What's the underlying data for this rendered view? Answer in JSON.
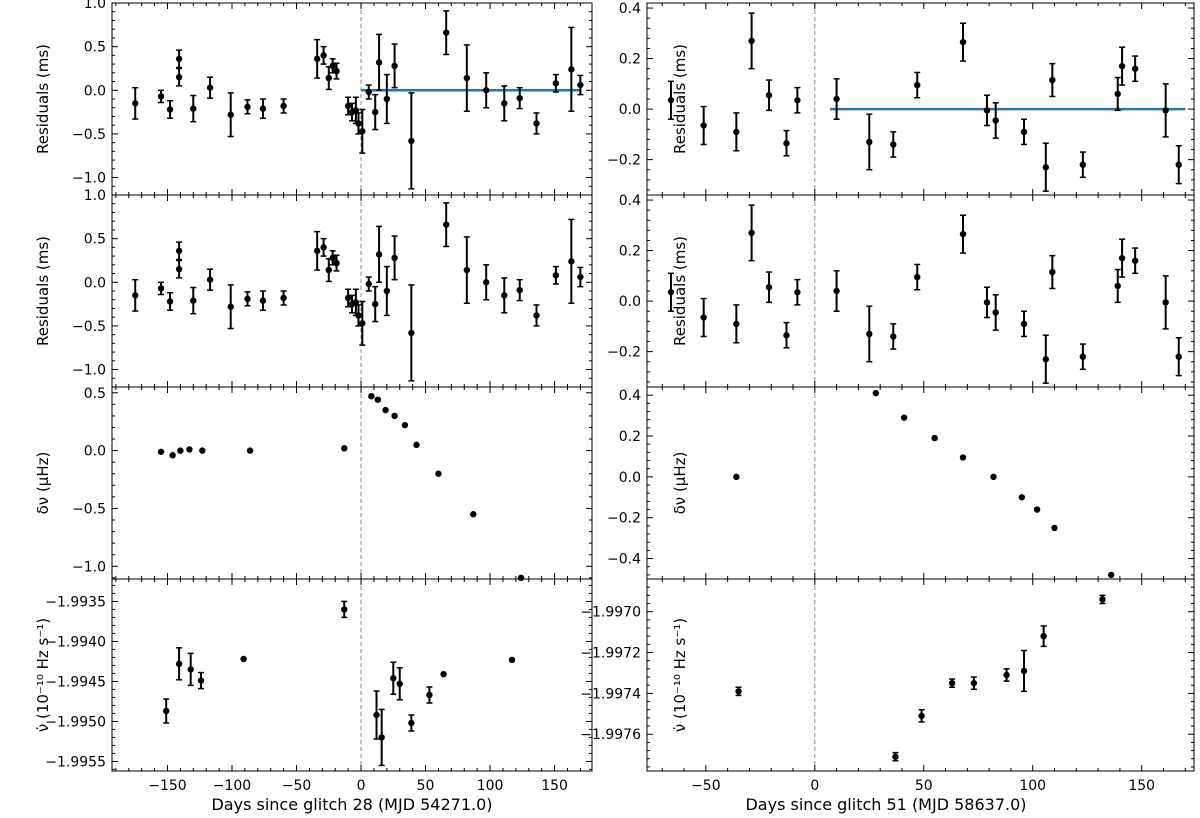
{
  "chart_data": [
    {
      "id": "left",
      "title": "",
      "xlabel": "Days since glitch 28 (MJD 54271.0)",
      "xlim": [
        -193,
        179
      ],
      "xticks": [
        -150,
        -100,
        -50,
        0,
        50,
        100,
        150
      ],
      "xtick_labels": [
        "−150",
        "−100",
        "−50",
        "0",
        "50",
        "100",
        "150"
      ],
      "glitch_epoch": 0,
      "panels": [
        {
          "type": "scatter",
          "name": "residuals-pre-fit",
          "ylabel": "Residuals (ms)",
          "ylim": [
            -1.2,
            1.0
          ],
          "yticks": [
            -1.0,
            -0.5,
            0.0,
            0.5,
            1.0
          ],
          "ytick_labels": [
            "−1.0",
            "−0.5",
            "0.0",
            "0.5",
            "1.0"
          ],
          "fit_line": {
            "x": [
              0,
              170
            ],
            "y": 0.0
          },
          "points": [
            {
              "x": -175,
              "y": -0.15,
              "err": 0.18
            },
            {
              "x": -155,
              "y": -0.07,
              "err": 0.07
            },
            {
              "x": -148,
              "y": -0.22,
              "err": 0.1
            },
            {
              "x": -141,
              "y": 0.36,
              "err": 0.1
            },
            {
              "x": -141,
              "y": 0.15,
              "err": 0.1
            },
            {
              "x": -130,
              "y": -0.21,
              "err": 0.15
            },
            {
              "x": -117,
              "y": 0.03,
              "err": 0.12
            },
            {
              "x": -101,
              "y": -0.28,
              "err": 0.25
            },
            {
              "x": -88,
              "y": -0.19,
              "err": 0.08
            },
            {
              "x": -76,
              "y": -0.21,
              "err": 0.11
            },
            {
              "x": -60,
              "y": -0.18,
              "err": 0.08
            },
            {
              "x": -34,
              "y": 0.36,
              "err": 0.22
            },
            {
              "x": -29,
              "y": 0.4,
              "err": 0.1
            },
            {
              "x": -25,
              "y": 0.14,
              "err": 0.13
            },
            {
              "x": -22,
              "y": 0.28,
              "err": 0.08
            },
            {
              "x": -19,
              "y": 0.22,
              "err": 0.09
            },
            {
              "x": -10,
              "y": -0.18,
              "err": 0.1
            },
            {
              "x": -7,
              "y": -0.25,
              "err": 0.1
            },
            {
              "x": -4,
              "y": -0.23,
              "err": 0.15
            },
            {
              "x": -2,
              "y": -0.38,
              "err": 0.12
            },
            {
              "x": 1,
              "y": -0.47,
              "err": 0.25
            },
            {
              "x": 6,
              "y": -0.02,
              "err": 0.08
            },
            {
              "x": 11,
              "y": -0.25,
              "err": 0.2
            },
            {
              "x": 14,
              "y": 0.32,
              "err": 0.32
            },
            {
              "x": 20,
              "y": -0.1,
              "err": 0.28
            },
            {
              "x": 26,
              "y": 0.28,
              "err": 0.25
            },
            {
              "x": 39,
              "y": -0.58,
              "err": 0.55
            },
            {
              "x": 66,
              "y": 0.66,
              "err": 0.25
            },
            {
              "x": 82,
              "y": 0.14,
              "err": 0.38
            },
            {
              "x": 97,
              "y": 0.0,
              "err": 0.2
            },
            {
              "x": 111,
              "y": -0.15,
              "err": 0.2
            },
            {
              "x": 123,
              "y": -0.09,
              "err": 0.12
            },
            {
              "x": 136,
              "y": -0.38,
              "err": 0.12
            },
            {
              "x": 151,
              "y": 0.08,
              "err": 0.1
            },
            {
              "x": 163,
              "y": 0.24,
              "err": 0.48
            },
            {
              "x": 170,
              "y": 0.06,
              "err": 0.11
            }
          ]
        },
        {
          "type": "scatter",
          "name": "residuals-post-fit",
          "ylabel": "Residuals (ms)",
          "ylim": [
            -1.2,
            1.0
          ],
          "yticks": [
            -1.0,
            -0.5,
            0.0,
            0.5,
            1.0
          ],
          "ytick_labels": [
            "−1.0",
            "−0.5",
            "0.0",
            "0.5",
            "1.0"
          ],
          "same_points_as": 0
        },
        {
          "type": "scatter",
          "name": "frequency-residual",
          "ylabel": "δν (μHz)",
          "ylim": [
            -1.11,
            0.55
          ],
          "yticks": [
            -1.0,
            -0.5,
            0.0,
            0.5
          ],
          "ytick_labels": [
            "−1.0",
            "−0.5",
            "0.0",
            "0.5"
          ],
          "points": [
            {
              "x": -155,
              "y": -0.01,
              "err": 0.0
            },
            {
              "x": -146,
              "y": -0.04,
              "err": 0.0
            },
            {
              "x": -140,
              "y": 0.0,
              "err": 0.0
            },
            {
              "x": -133,
              "y": 0.01,
              "err": 0.0
            },
            {
              "x": -123,
              "y": 0.0,
              "err": 0.0
            },
            {
              "x": -86,
              "y": 0.0,
              "err": 0.0
            },
            {
              "x": -13,
              "y": 0.02,
              "err": 0.0
            },
            {
              "x": 8,
              "y": 0.47,
              "err": 0.01
            },
            {
              "x": 13,
              "y": 0.44,
              "err": 0.01
            },
            {
              "x": 19,
              "y": 0.35,
              "err": 0.0
            },
            {
              "x": 26,
              "y": 0.3,
              "err": 0.0
            },
            {
              "x": 34,
              "y": 0.22,
              "err": 0.0
            },
            {
              "x": 43,
              "y": 0.05,
              "err": 0.0
            },
            {
              "x": 60,
              "y": -0.2,
              "err": 0.0
            },
            {
              "x": 87,
              "y": -0.55,
              "err": 0.0
            },
            {
              "x": 124,
              "y": -1.1,
              "err": 0.0
            }
          ]
        },
        {
          "type": "scatter",
          "name": "frequency-derivative",
          "ylabel": "ν̇ (10⁻¹⁰ Hz s⁻¹)",
          "ylim": [
            -1.99562,
            -1.99322
          ],
          "yticks": [
            -1.9955,
            -1.995,
            -1.9945,
            -1.994,
            -1.9935
          ],
          "ytick_labels": [
            "−1.9955",
            "−1.9950",
            "−1.9945",
            "−1.9940",
            "−1.9935"
          ],
          "points": [
            {
              "x": -151,
              "y": -1.99487,
              "err": 0.00015
            },
            {
              "x": -141,
              "y": -1.99428,
              "err": 0.0002
            },
            {
              "x": -132,
              "y": -1.99435,
              "err": 0.0002
            },
            {
              "x": -124,
              "y": -1.99449,
              "err": 0.0001
            },
            {
              "x": -91,
              "y": -1.99422,
              "err": 0.0
            },
            {
              "x": -13,
              "y": -1.9936,
              "err": 0.0001
            },
            {
              "x": 12,
              "y": -1.99492,
              "err": 0.0003
            },
            {
              "x": 16,
              "y": -1.9952,
              "err": 0.00035
            },
            {
              "x": 25,
              "y": -1.99446,
              "err": 0.0002
            },
            {
              "x": 30,
              "y": -1.99453,
              "err": 0.0002
            },
            {
              "x": 39,
              "y": -1.99502,
              "err": 0.0001
            },
            {
              "x": 53,
              "y": -1.99467,
              "err": 0.0001
            },
            {
              "x": 64,
              "y": -1.99441,
              "err": 0.0
            },
            {
              "x": 117,
              "y": -1.99423,
              "err": 0.0
            }
          ]
        }
      ]
    },
    {
      "id": "right",
      "title": "",
      "xlabel": "Days since glitch 51 (MJD 58637.0)",
      "xlim": [
        -77,
        174
      ],
      "xticks": [
        -50,
        0,
        50,
        100,
        150
      ],
      "xtick_labels": [
        "−50",
        "0",
        "50",
        "100",
        "150"
      ],
      "glitch_epoch": 0,
      "panels": [
        {
          "type": "scatter",
          "name": "residuals-pre-fit",
          "ylabel": "Residuals (ms)",
          "ylim": [
            -0.34,
            0.42
          ],
          "yticks": [
            -0.2,
            0.0,
            0.2,
            0.4
          ],
          "ytick_labels": [
            "−0.2",
            "0.0",
            "0.2",
            "0.4"
          ],
          "fit_line": {
            "x": [
              7,
              170
            ],
            "y": 0.0
          },
          "points": [
            {
              "x": -66,
              "y": 0.035,
              "err": 0.075
            },
            {
              "x": -51,
              "y": -0.065,
              "err": 0.075
            },
            {
              "x": -36,
              "y": -0.09,
              "err": 0.075
            },
            {
              "x": -29,
              "y": 0.27,
              "err": 0.11
            },
            {
              "x": -21,
              "y": 0.055,
              "err": 0.06
            },
            {
              "x": -13,
              "y": -0.135,
              "err": 0.05
            },
            {
              "x": -8,
              "y": 0.035,
              "err": 0.05
            },
            {
              "x": 10,
              "y": 0.04,
              "err": 0.08
            },
            {
              "x": 25,
              "y": -0.13,
              "err": 0.11
            },
            {
              "x": 36,
              "y": -0.14,
              "err": 0.05
            },
            {
              "x": 47,
              "y": 0.095,
              "err": 0.05
            },
            {
              "x": 68,
              "y": 0.265,
              "err": 0.075
            },
            {
              "x": 79,
              "y": -0.005,
              "err": 0.06
            },
            {
              "x": 83,
              "y": -0.045,
              "err": 0.07
            },
            {
              "x": 96,
              "y": -0.09,
              "err": 0.05
            },
            {
              "x": 106,
              "y": -0.23,
              "err": 0.095
            },
            {
              "x": 109,
              "y": 0.115,
              "err": 0.065
            },
            {
              "x": 123,
              "y": -0.22,
              "err": 0.05
            },
            {
              "x": 139,
              "y": 0.06,
              "err": 0.065
            },
            {
              "x": 141,
              "y": 0.17,
              "err": 0.075
            },
            {
              "x": 147,
              "y": 0.16,
              "err": 0.05
            },
            {
              "x": 161,
              "y": -0.005,
              "err": 0.105
            },
            {
              "x": 167,
              "y": -0.22,
              "err": 0.075
            }
          ]
        },
        {
          "type": "scatter",
          "name": "residuals-post-fit",
          "ylabel": "Residuals (ms)",
          "ylim": [
            -0.34,
            0.42
          ],
          "yticks": [
            -0.2,
            0.0,
            0.2,
            0.4
          ],
          "ytick_labels": [
            "−0.2",
            "0.0",
            "0.2",
            "0.4"
          ],
          "same_points_as": 0
        },
        {
          "type": "scatter",
          "name": "frequency-residual",
          "ylabel": "δν (μHz)",
          "ylim": [
            -0.5,
            0.44
          ],
          "yticks": [
            -0.4,
            -0.2,
            0.0,
            0.2,
            0.4
          ],
          "ytick_labels": [
            "−0.4",
            "−0.2",
            "0.0",
            "0.2",
            "0.4"
          ],
          "points": [
            {
              "x": -36,
              "y": 0.0,
              "err": 0.0
            },
            {
              "x": 28,
              "y": 0.41,
              "err": 0.0
            },
            {
              "x": 41,
              "y": 0.29,
              "err": 0.0
            },
            {
              "x": 55,
              "y": 0.19,
              "err": 0.0
            },
            {
              "x": 68,
              "y": 0.095,
              "err": 0.0
            },
            {
              "x": 82,
              "y": 0.0,
              "err": 0.0
            },
            {
              "x": 95,
              "y": -0.1,
              "err": 0.0
            },
            {
              "x": 102,
              "y": -0.16,
              "err": 0.0
            },
            {
              "x": 110,
              "y": -0.25,
              "err": 0.0
            },
            {
              "x": 136,
              "y": -0.48,
              "err": 0.0
            }
          ]
        },
        {
          "type": "scatter",
          "name": "frequency-derivative",
          "ylabel": "ν̇ (10⁻¹⁰ Hz s⁻¹)",
          "ylim": [
            -1.99778,
            -1.99684
          ],
          "yticks": [
            -1.9976,
            -1.9974,
            -1.9972,
            -1.997
          ],
          "ytick_labels": [
            "−1.9976",
            "−1.9974",
            "−1.9972",
            "−1.9970"
          ],
          "points": [
            {
              "x": -35,
              "y": -1.99739,
              "err": 2e-05
            },
            {
              "x": 37,
              "y": -1.99771,
              "err": 2e-05
            },
            {
              "x": 49,
              "y": -1.99751,
              "err": 3e-05
            },
            {
              "x": 63,
              "y": -1.99735,
              "err": 2e-05
            },
            {
              "x": 73,
              "y": -1.99735,
              "err": 3e-05
            },
            {
              "x": 88,
              "y": -1.99731,
              "err": 3e-05
            },
            {
              "x": 96,
              "y": -1.99729,
              "err": 0.0001
            },
            {
              "x": 105,
              "y": -1.99712,
              "err": 5e-05
            },
            {
              "x": 132,
              "y": -1.99694,
              "err": 2e-05
            }
          ]
        }
      ]
    }
  ],
  "colors": {
    "points": "#000000",
    "fit_line": "#1f77b4",
    "glitch_line": "#888888",
    "axes": "#000000"
  }
}
